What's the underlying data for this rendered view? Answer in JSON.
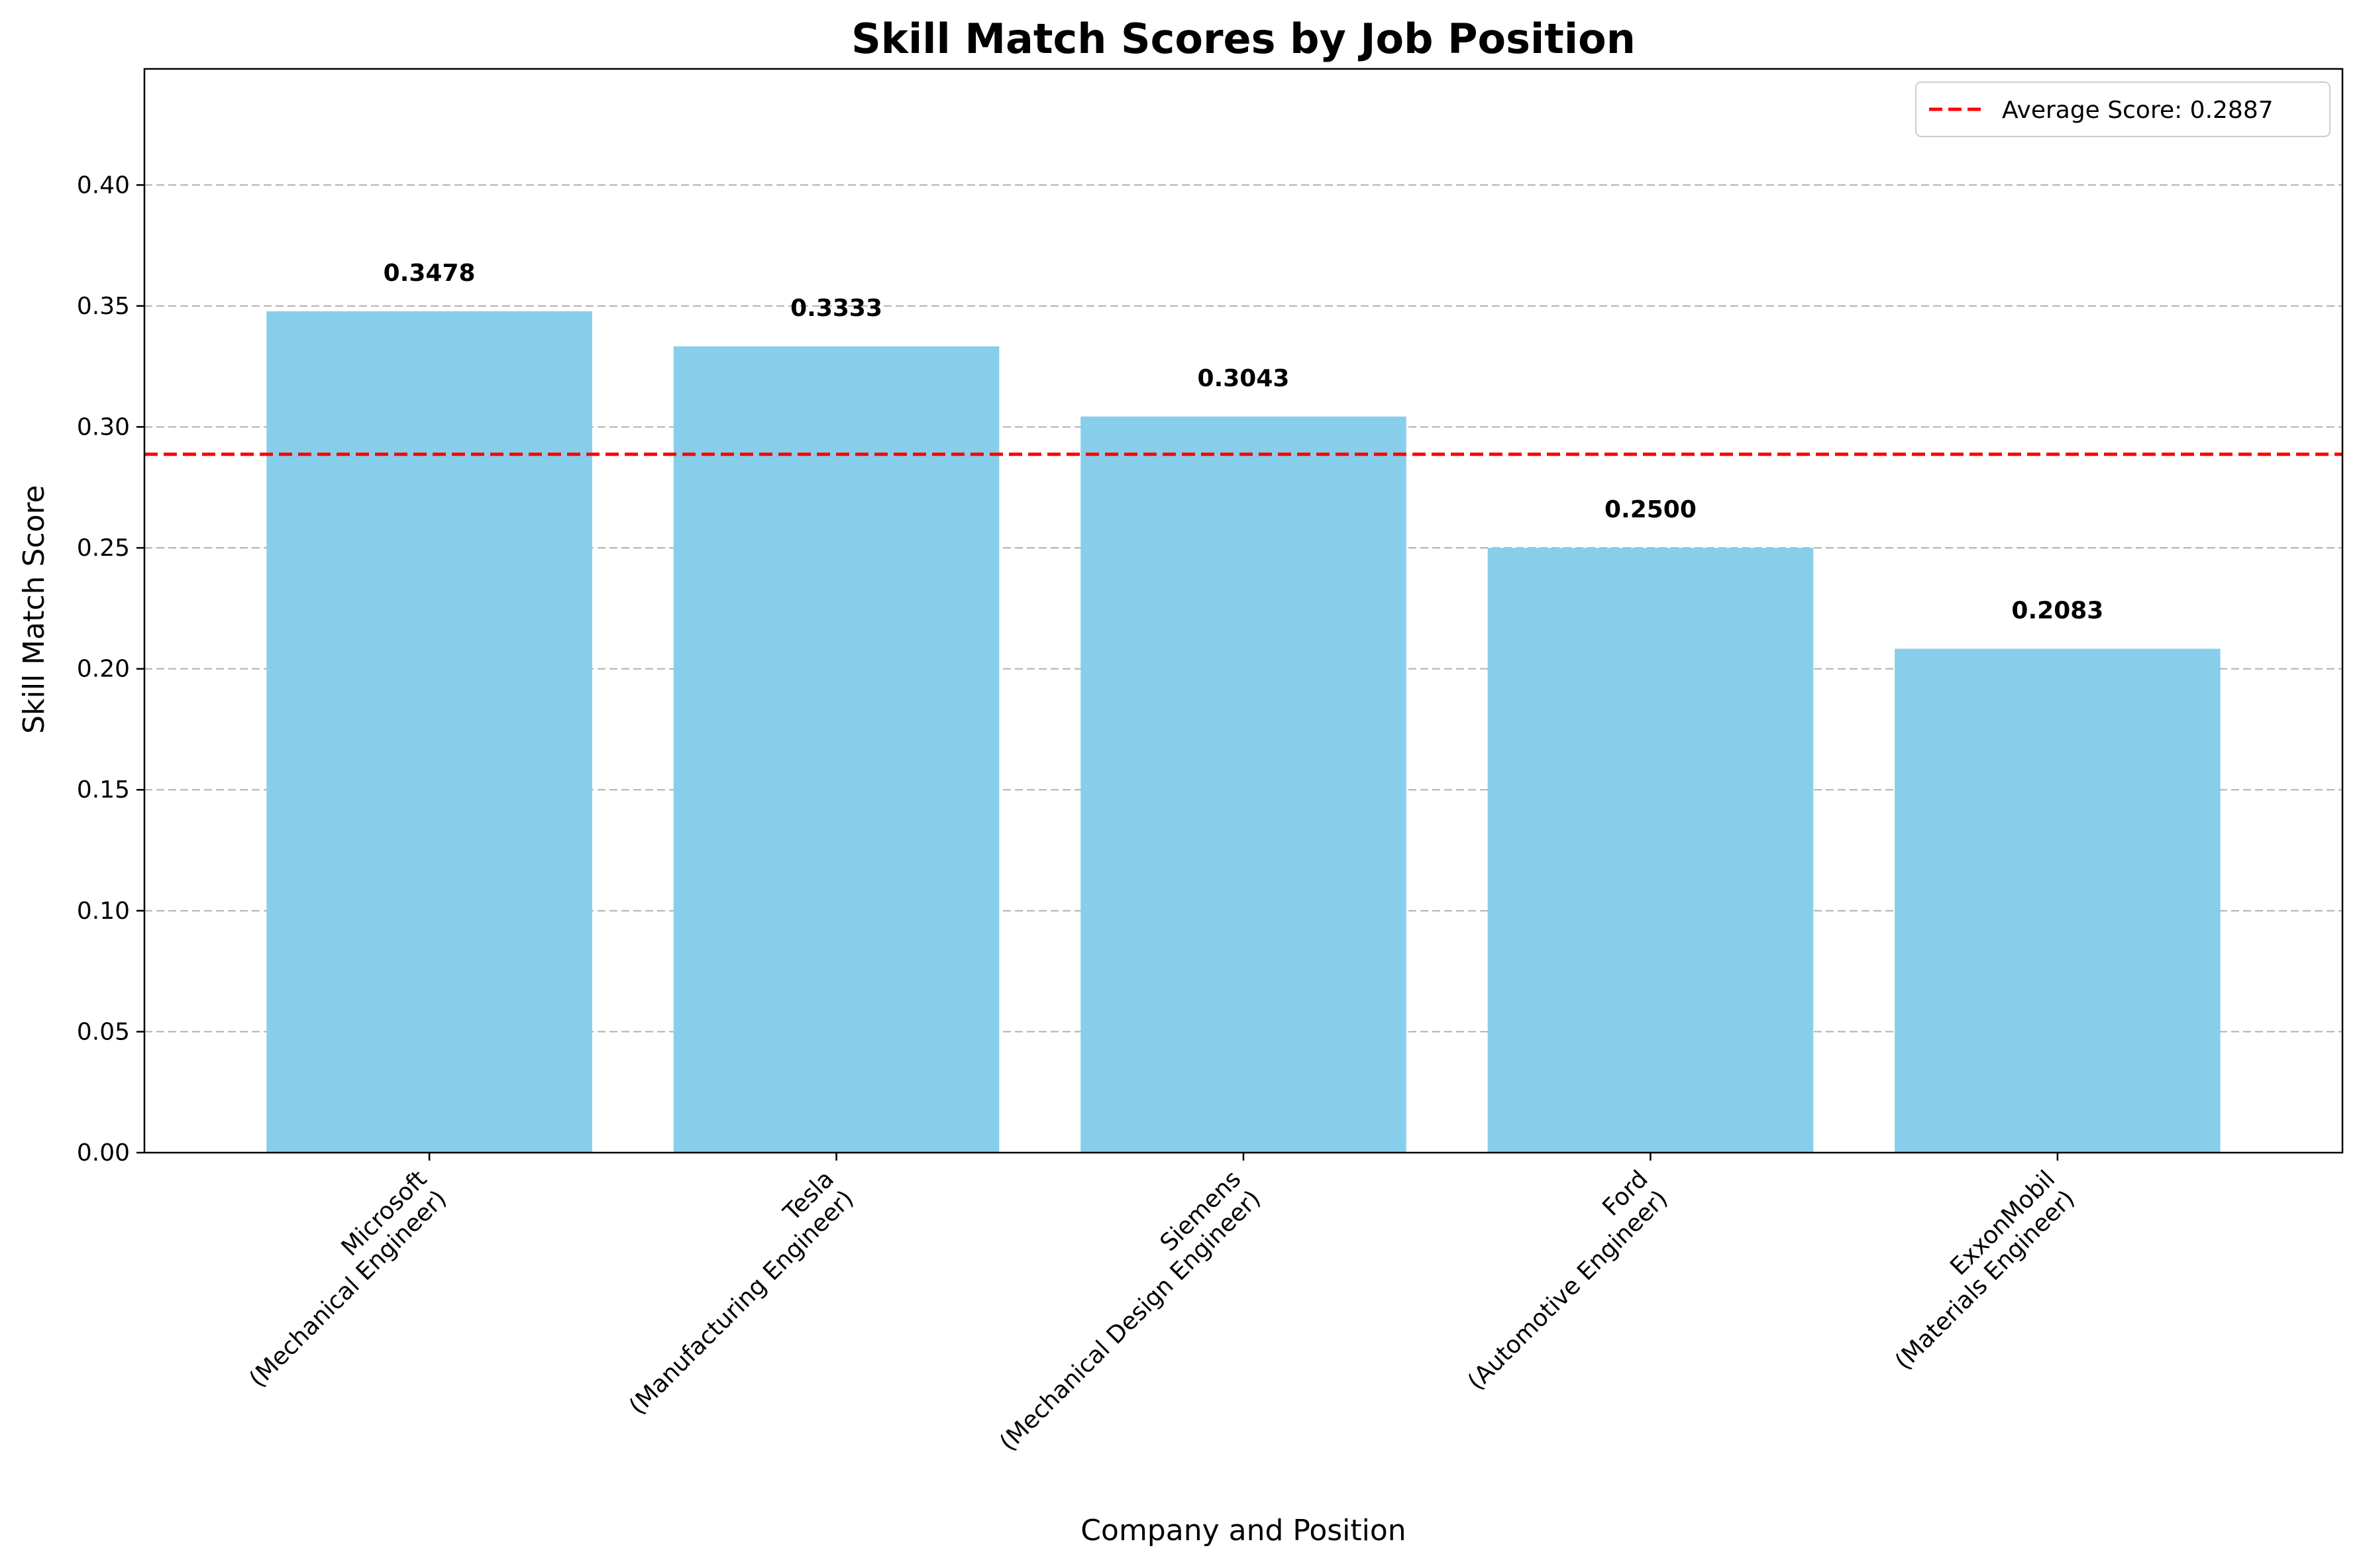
{
  "chart_data": {
    "type": "bar",
    "title": "Skill Match Scores by Job Position",
    "xlabel": "Company and Position",
    "ylabel": "Skill Match Score",
    "categories": [
      [
        "Microsoft",
        "(Mechanical Engineer)"
      ],
      [
        "Tesla",
        "(Manufacturing Engineer)"
      ],
      [
        "Siemens",
        "(Mechanical Design Engineer)"
      ],
      [
        "Ford",
        "(Automotive Engineer)"
      ],
      [
        "ExxonMobil",
        "(Materials Engineer)"
      ]
    ],
    "values": [
      0.3478,
      0.3333,
      0.3043,
      0.25,
      0.2083
    ],
    "value_labels": [
      "0.3478",
      "0.3333",
      "0.3043",
      "0.2500",
      "0.2083"
    ],
    "ylim": [
      0,
      0.448
    ],
    "yticks": [
      0,
      0.05,
      0.1,
      0.15,
      0.2,
      0.25,
      0.3,
      0.35,
      0.4
    ],
    "ytick_labels": [
      "0.00",
      "0.05",
      "0.10",
      "0.15",
      "0.20",
      "0.25",
      "0.30",
      "0.35",
      "0.40"
    ],
    "grid": "y-dashed",
    "bar_color": "#87CEEB",
    "reference_line": {
      "value": 0.2887,
      "color": "#ff0000",
      "label": "Average Score: 0.2887"
    },
    "legend": "top-right"
  }
}
